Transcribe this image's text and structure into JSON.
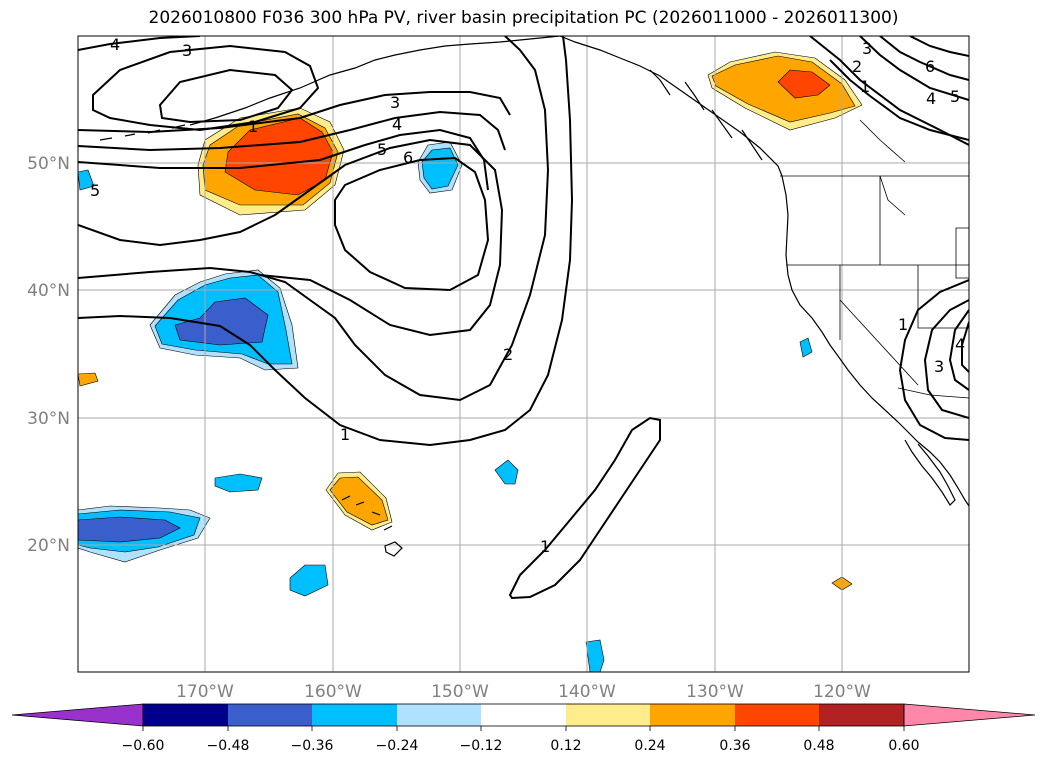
{
  "title": "2026010800 F036 300 hPa PV, river basin precipitation PC (2026011000 - 2026011300)",
  "map": {
    "projection": "PlateCarree",
    "extent": {
      "lon": [
        -180,
        -110
      ],
      "lat": [
        10,
        60
      ]
    },
    "gridlines": true,
    "coastlines": true,
    "state_borders": true
  },
  "gridlabels": {
    "lat": [
      {
        "value": 50,
        "text": "50°N"
      },
      {
        "value": 40,
        "text": "40°N"
      },
      {
        "value": 30,
        "text": "30°N"
      },
      {
        "value": 20,
        "text": "20°N"
      }
    ],
    "lon": [
      {
        "value": -170,
        "text": "170°W"
      },
      {
        "value": -160,
        "text": "160°W"
      },
      {
        "value": -150,
        "text": "150°W"
      },
      {
        "value": -140,
        "text": "140°W"
      },
      {
        "value": -130,
        "text": "130°W"
      },
      {
        "value": -120,
        "text": "120°W"
      }
    ]
  },
  "pv_contour_labels": [
    "4",
    "3",
    "1",
    "3",
    "4",
    "5",
    "6",
    "2",
    "1",
    "1",
    "5",
    "2",
    "3",
    "6",
    "1",
    "4",
    "5",
    "1",
    "3",
    "4"
  ],
  "colorbar": {
    "extend": "both",
    "colors": [
      "#9932cc",
      "#00008b",
      "#3a5fcd",
      "#00bfff",
      "#b0e2ff",
      "#ffffff",
      "#ffec8b",
      "#ffa500",
      "#ff4500",
      "#b22222",
      "#ff88aa"
    ],
    "ticks": [
      "−0.60",
      "−0.48",
      "−0.36",
      "−0.24",
      "−0.12",
      "0.12",
      "0.24",
      "0.36",
      "0.48",
      "0.60"
    ]
  },
  "legend_colors": {
    "c_n36": "#3a5fcd",
    "c_n24": "#00bfff",
    "c_n12": "#b0e2ff",
    "c_p12": "#ffec8b",
    "c_p24": "#ffa500",
    "c_p36": "#ff4500"
  }
}
